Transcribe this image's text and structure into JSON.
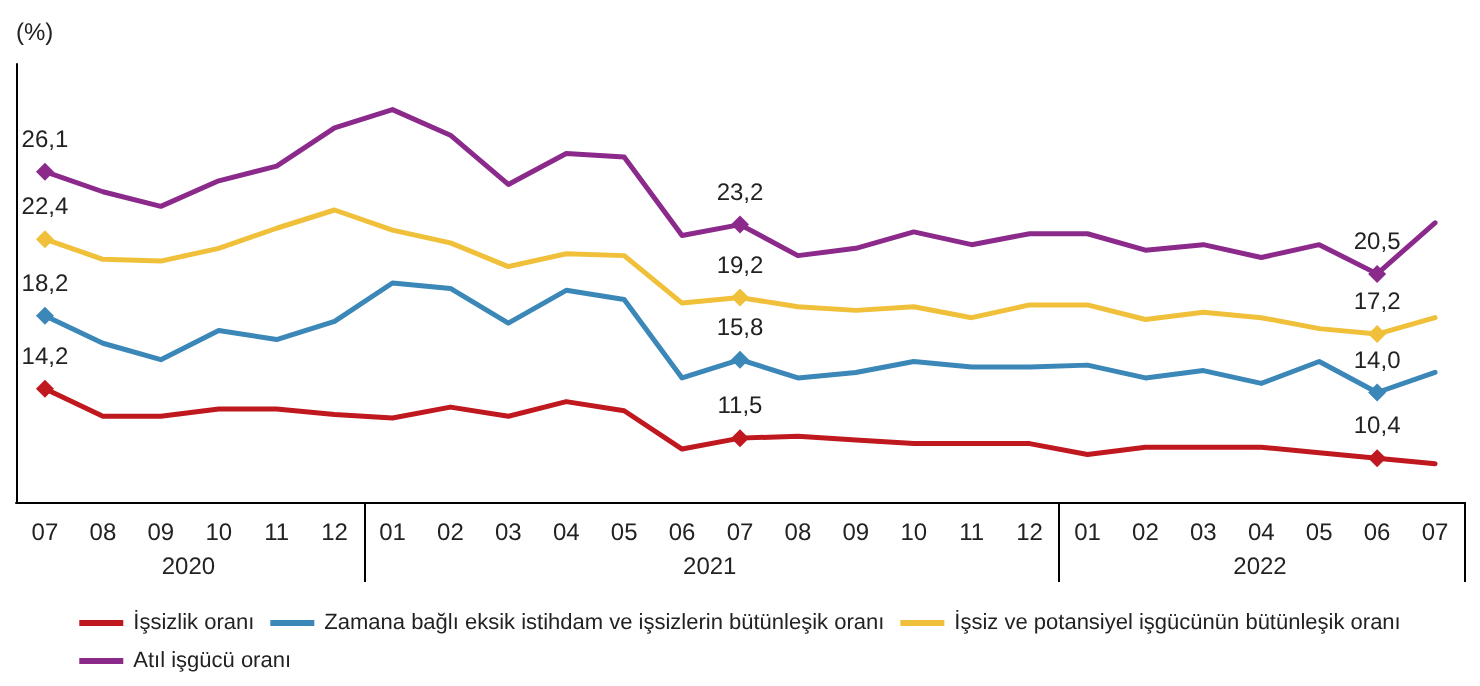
{
  "chart_data": {
    "type": "line",
    "ylabel": "(%)",
    "categories": [
      "07",
      "08",
      "09",
      "10",
      "11",
      "12",
      "01",
      "02",
      "03",
      "04",
      "05",
      "06",
      "07",
      "08",
      "09",
      "10",
      "11",
      "12",
      "01",
      "02",
      "03",
      "04",
      "05",
      "06",
      "07"
    ],
    "annotations": [
      "2020",
      "2021",
      "2022"
    ],
    "ylim": [
      8,
      32
    ],
    "tick_labels": "x",
    "grid": false,
    "legend": "bottom",
    "line_style": "solid",
    "series": [
      {
        "name": "İşsizlik oranı",
        "color": "#c0181f",
        "values": [
          14.2,
          12.7,
          12.7,
          13.1,
          13.1,
          12.8,
          12.6,
          13.2,
          12.7,
          13.5,
          13.0,
          10.9,
          11.5,
          11.6,
          11.4,
          11.2,
          11.2,
          11.2,
          10.6,
          11.0,
          11.0,
          11.0,
          10.7,
          10.4,
          10.1
        ],
        "value_labels": [
          "14,2",
          null,
          null,
          null,
          null,
          null,
          null,
          null,
          null,
          null,
          null,
          null,
          "11,5",
          null,
          null,
          null,
          null,
          null,
          null,
          null,
          null,
          null,
          null,
          "10,4",
          null
        ]
      },
      {
        "name": "Zamana bağlı eksik istihdam ve işsizlerin bütünleşik oranı",
        "color": "#3a87b8",
        "values": [
          18.2,
          16.7,
          15.8,
          17.4,
          16.9,
          17.9,
          20.0,
          19.7,
          17.8,
          19.6,
          19.1,
          14.8,
          15.8,
          14.8,
          15.1,
          15.7,
          15.4,
          15.4,
          15.5,
          14.8,
          15.2,
          14.5,
          15.7,
          14.0,
          15.1
        ],
        "value_labels": [
          "18,2",
          null,
          null,
          null,
          null,
          null,
          null,
          null,
          null,
          null,
          null,
          null,
          "15,8",
          null,
          null,
          null,
          null,
          null,
          null,
          null,
          null,
          null,
          null,
          "14,0",
          null
        ]
      },
      {
        "name": "İşsiz ve potansiyel işgücünün bütünleşik oranı",
        "color": "#f0c03a",
        "values": [
          22.4,
          21.3,
          21.2,
          21.9,
          23.0,
          24.0,
          22.9,
          22.2,
          20.9,
          21.6,
          21.5,
          18.9,
          19.2,
          18.7,
          18.5,
          18.7,
          18.1,
          18.8,
          18.8,
          18.0,
          18.4,
          18.1,
          17.5,
          17.2,
          18.1
        ],
        "value_labels": [
          "22,4",
          null,
          null,
          null,
          null,
          null,
          null,
          null,
          null,
          null,
          null,
          null,
          "19,2",
          null,
          null,
          null,
          null,
          null,
          null,
          null,
          null,
          null,
          null,
          "17,2",
          null
        ]
      },
      {
        "name": "Atıl işgücü oranı",
        "color": "#8b2a8b",
        "values": [
          26.1,
          25.0,
          24.2,
          25.6,
          26.4,
          28.5,
          29.5,
          28.1,
          25.4,
          27.1,
          26.9,
          22.6,
          23.2,
          21.5,
          21.9,
          22.8,
          22.1,
          22.7,
          22.7,
          21.8,
          22.1,
          21.4,
          22.1,
          20.5,
          23.3
        ],
        "value_labels": [
          "26,1",
          null,
          null,
          null,
          null,
          null,
          null,
          null,
          null,
          null,
          null,
          null,
          "23,2",
          null,
          null,
          null,
          null,
          null,
          null,
          null,
          null,
          null,
          null,
          "20,5",
          null
        ]
      }
    ]
  }
}
